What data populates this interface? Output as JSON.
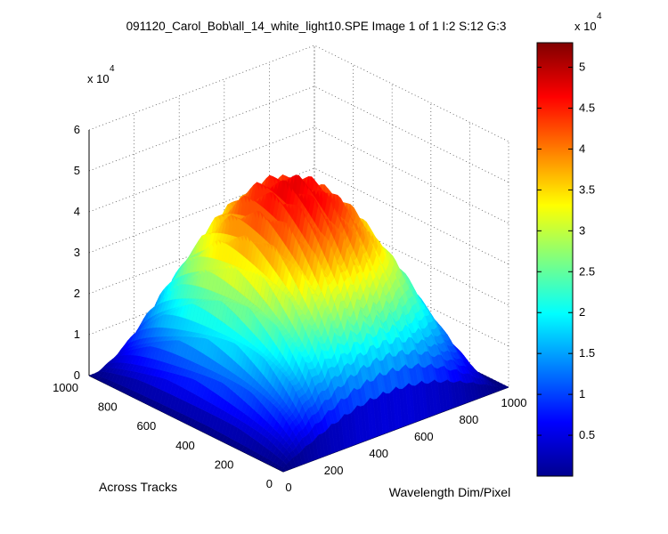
{
  "chart_data": {
    "type": "surface",
    "title": "091120_Carol_Bob\\all_14_white_light10.SPE  Image 1 of 1  I:2  S:12  G:3",
    "xlabel": "Wavelength Dim/Pixel",
    "ylabel": "Across Tracks",
    "zlabel": "",
    "x_ticks": [
      0,
      200,
      400,
      600,
      800,
      1000
    ],
    "y_ticks": [
      0,
      200,
      400,
      600,
      800,
      1000
    ],
    "z_ticks": [
      0,
      1,
      2,
      3,
      4,
      5,
      6
    ],
    "z_multiplier": "x 10",
    "z_multiplier_exp": "4",
    "xlim": [
      0,
      1000
    ],
    "ylim": [
      0,
      1000
    ],
    "zlim": [
      0,
      60000
    ],
    "grid": true,
    "colormap": "jet",
    "colorbar": {
      "range": [
        0,
        53000
      ],
      "ticks": [
        0.5,
        1,
        1.5,
        2,
        2.5,
        3,
        3.5,
        4,
        4.5,
        5
      ],
      "multiplier": "x 10",
      "multiplier_exp": "4"
    },
    "surface_description_values": {
      "peak_value": 50000,
      "peak_wavelength_pixel": 400,
      "active_track_range": [
        0,
        1000
      ],
      "active_wavelength_range": [
        0,
        1000
      ]
    }
  }
}
